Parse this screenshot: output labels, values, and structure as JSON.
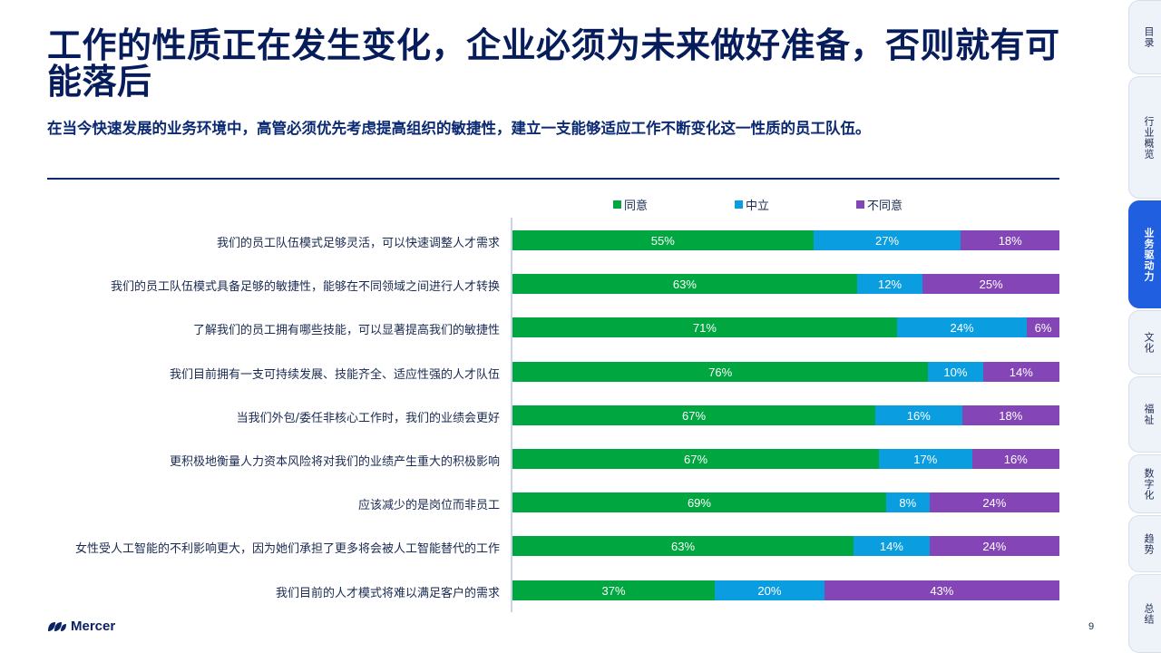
{
  "header": {
    "title": "工作的性质正在发生变化，企业必须为未来做好准备，否则就有可能落后",
    "subtitle": "在当今快速发展的业务环境中，高管必须优先考虑提高组织的敏捷性，建立一支能够适应工作不断变化这一性质的员工队伍。"
  },
  "colors": {
    "agree": "#00a63f",
    "neutral": "#0a9ee0",
    "disagree": "#8446b6"
  },
  "chart_data": {
    "type": "bar",
    "orientation": "horizontal",
    "stacked": true,
    "legend_position": "top",
    "categories": [
      "我们的员工队伍模式足够灵活，可以快速调整人才需求",
      "我们的员工队伍模式具备足够的敏捷性，能够在不同领域之间进行人才转换",
      "了解我们的员工拥有哪些技能，可以显著提高我们的敏捷性",
      "我们目前拥有一支可持续发展、技能齐全、适应性强的人才队伍",
      "当我们外包/委任非核心工作时，我们的业绩会更好",
      "更积极地衡量人力资本风险将对我们的业绩产生重大的积极影响",
      "应该减少的是岗位而非员工",
      "女性受人工智能的不利影响更大，因为她们承担了更多将会被人工智能替代的工作",
      "我们目前的人才模式将难以满足客户的需求"
    ],
    "series": [
      {
        "name": "同意",
        "color": "#00a63f",
        "values": [
          55,
          63,
          71,
          76,
          67,
          67,
          69,
          63,
          37
        ],
        "labels": [
          "55%",
          "63%",
          "71%",
          "76%",
          "67%",
          "67%",
          "69%",
          "63%",
          "37%"
        ]
      },
      {
        "name": "中立",
        "color": "#0a9ee0",
        "values": [
          27,
          12,
          24,
          10,
          16,
          17,
          8,
          14,
          20
        ],
        "labels": [
          "27%",
          "12%",
          "24%",
          "10%",
          "16%",
          "17%",
          "8%",
          "14%",
          "20%"
        ]
      },
      {
        "name": "不同意",
        "color": "#8446b6",
        "values": [
          18,
          25,
          6,
          14,
          18,
          16,
          24,
          24,
          43
        ],
        "labels": [
          "18%",
          "25%",
          "6%",
          "14%",
          "18%",
          "16%",
          "24%",
          "24%",
          "43%"
        ]
      }
    ]
  },
  "footer": {
    "logo_text": "Mercer",
    "page_number": "9"
  },
  "sidenav": {
    "items": [
      {
        "label": "目录",
        "active": false
      },
      {
        "label": "行业概览",
        "active": false
      },
      {
        "label": "业务驱动力",
        "active": true
      },
      {
        "label": "文化",
        "active": false
      },
      {
        "label": "福祉",
        "active": false
      },
      {
        "label": "数字化",
        "active": false
      },
      {
        "label": "趋势",
        "active": false
      },
      {
        "label": "总结",
        "active": false
      }
    ]
  }
}
